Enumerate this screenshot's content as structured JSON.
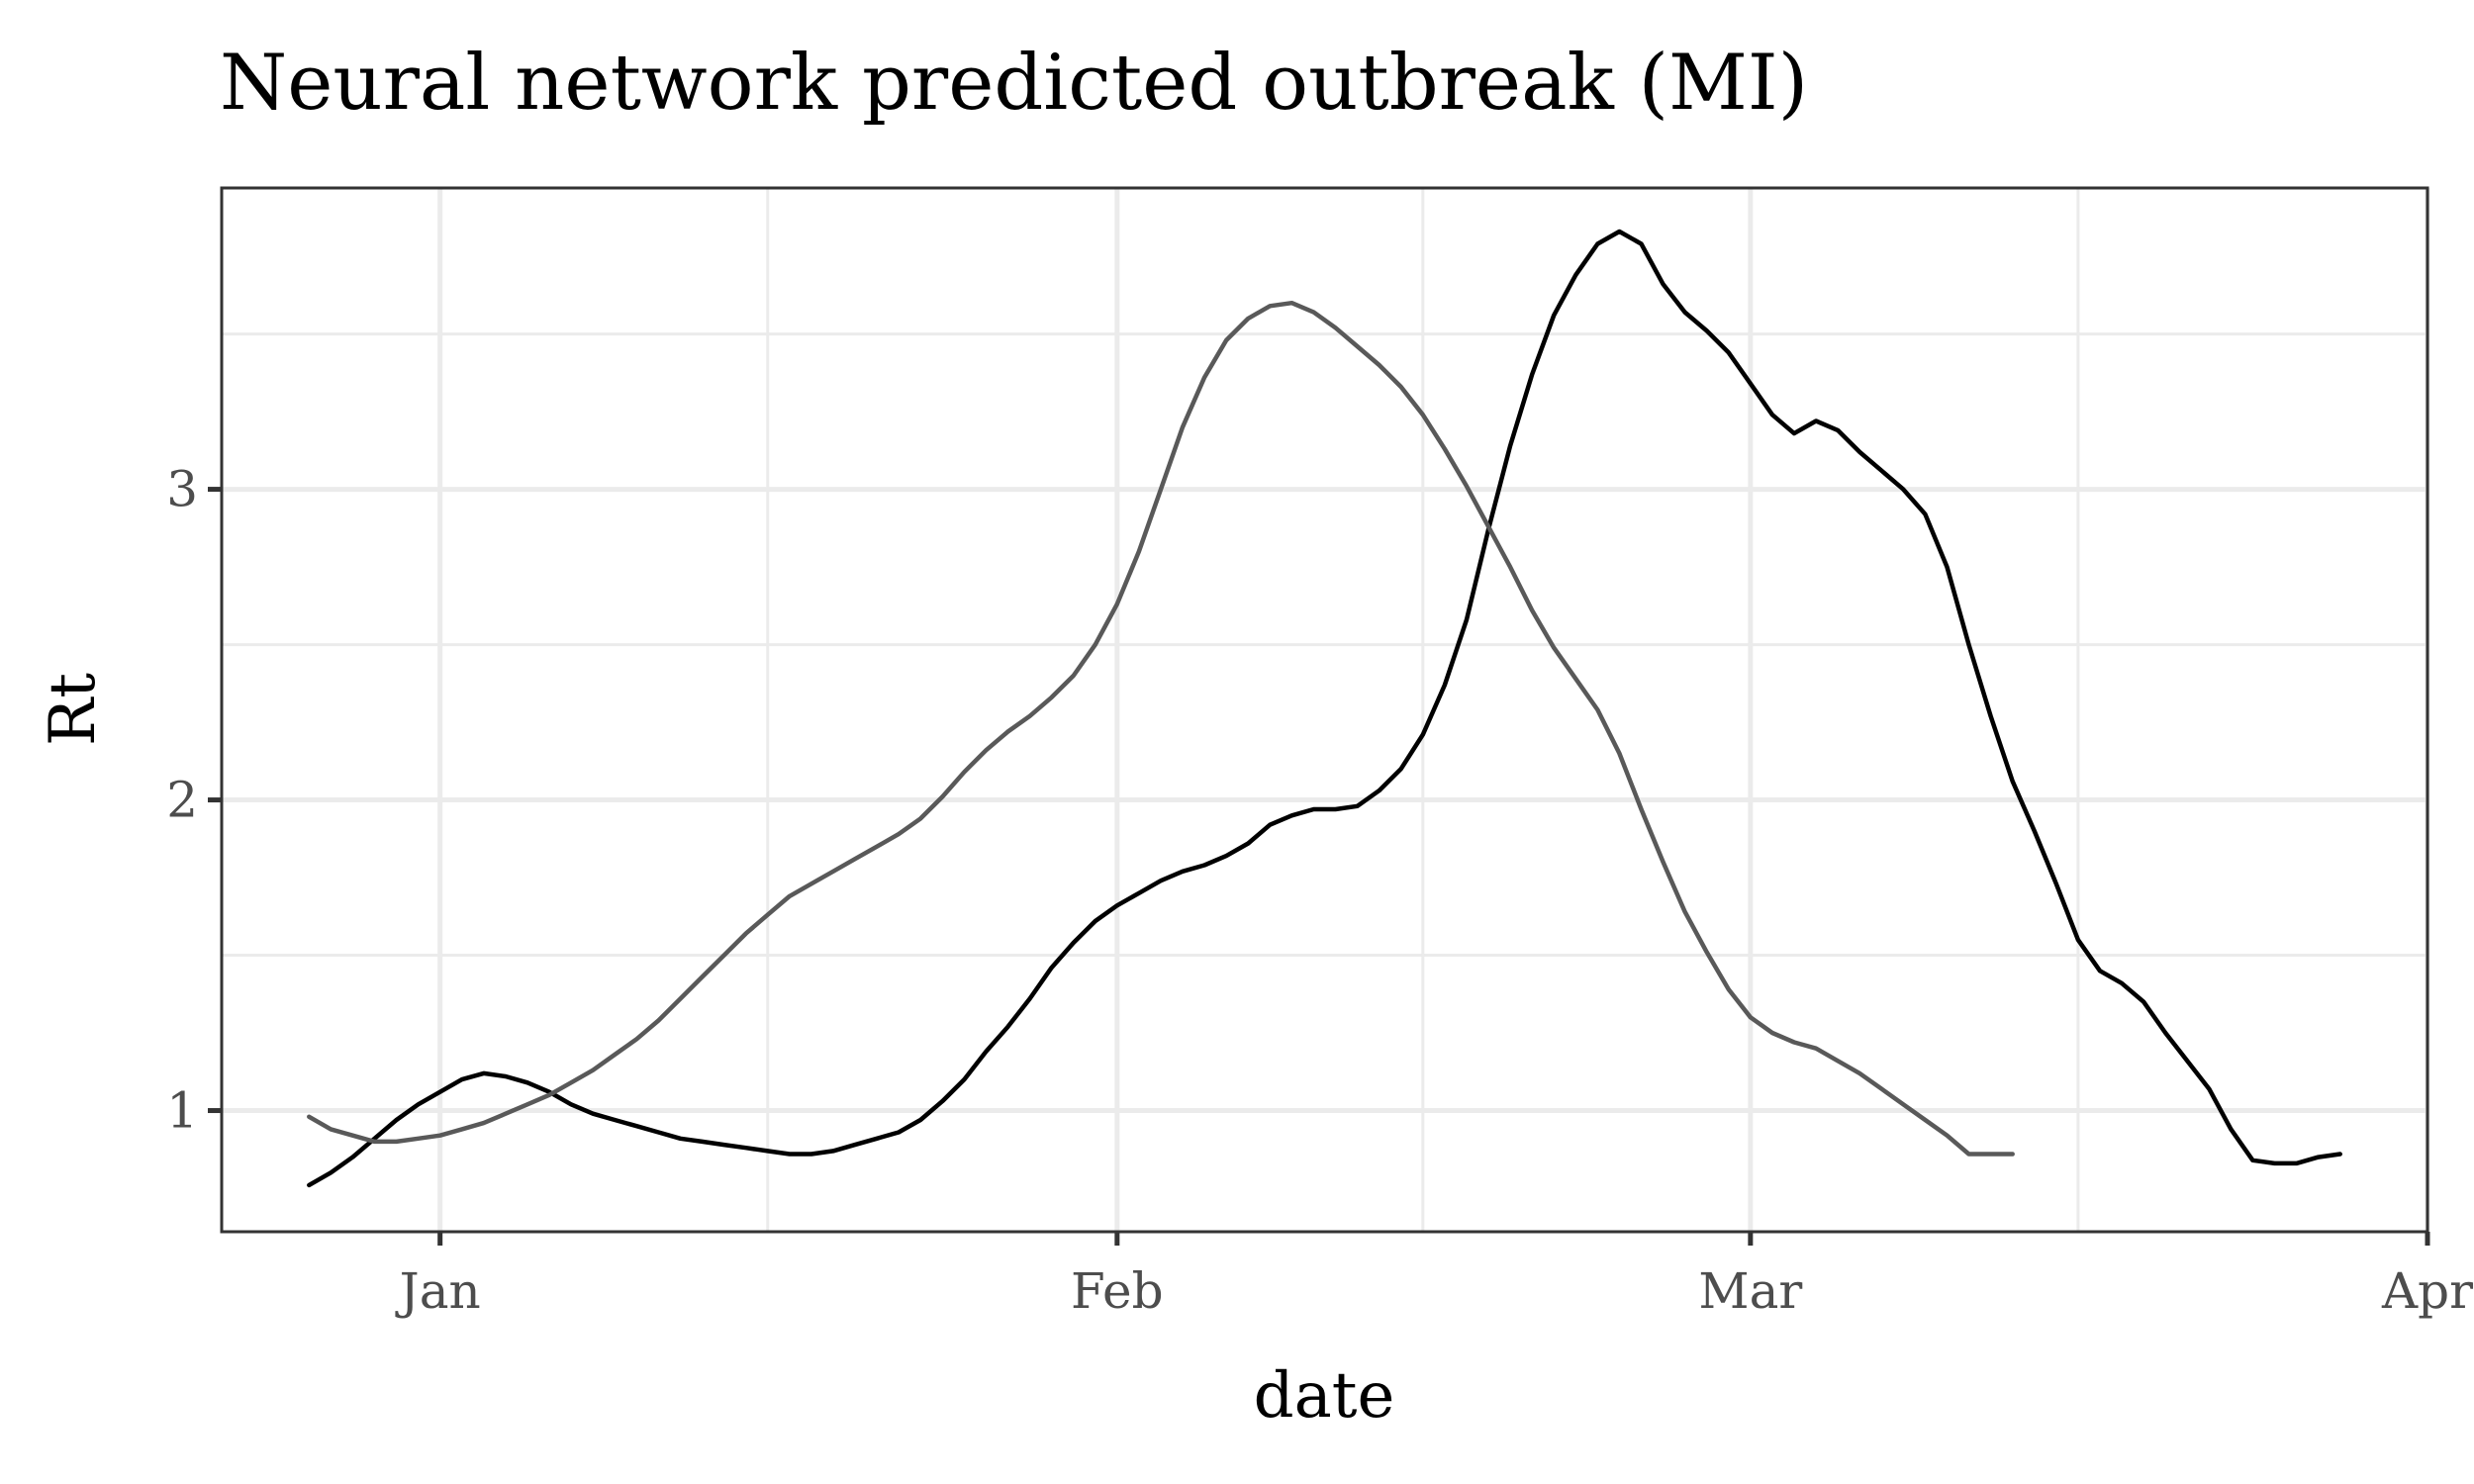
{
  "chart_data": {
    "type": "line",
    "title": "Neural network predicted outbreak (MI)",
    "xlabel": "date",
    "ylabel": "Rt",
    "x_range": [
      "2019-12-22",
      "2020-04-01"
    ],
    "ylim": [
      0.61,
      3.97
    ],
    "x_ticks": [
      {
        "date": "2020-01-01",
        "label": "Jan"
      },
      {
        "date": "2020-02-01",
        "label": "Feb"
      },
      {
        "date": "2020-03-01",
        "label": "Mar"
      },
      {
        "date": "2020-04-01",
        "label": "Apr"
      }
    ],
    "x_minor_ticks": [
      "2020-01-16",
      "2020-02-15",
      "2020-03-16"
    ],
    "y_ticks": [
      1,
      2,
      3
    ],
    "y_minor_ticks": [
      1.5,
      2.5,
      3.5
    ],
    "grid": true,
    "legend": "none",
    "series": [
      {
        "color": "#000000",
        "points": [
          [
            "2019-12-26",
            0.76
          ],
          [
            "2019-12-27",
            0.8
          ],
          [
            "2019-12-28",
            0.85
          ],
          [
            "2019-12-29",
            0.91
          ],
          [
            "2019-12-30",
            0.97
          ],
          [
            "2019-12-31",
            1.02
          ],
          [
            "2020-01-01",
            1.06
          ],
          [
            "2020-01-02",
            1.1
          ],
          [
            "2020-01-03",
            1.12
          ],
          [
            "2020-01-04",
            1.11
          ],
          [
            "2020-01-05",
            1.09
          ],
          [
            "2020-01-06",
            1.06
          ],
          [
            "2020-01-07",
            1.02
          ],
          [
            "2020-01-08",
            0.99
          ],
          [
            "2020-01-09",
            0.97
          ],
          [
            "2020-01-10",
            0.95
          ],
          [
            "2020-01-11",
            0.93
          ],
          [
            "2020-01-12",
            0.91
          ],
          [
            "2020-01-13",
            0.9
          ],
          [
            "2020-01-14",
            0.89
          ],
          [
            "2020-01-15",
            0.88
          ],
          [
            "2020-01-16",
            0.87
          ],
          [
            "2020-01-17",
            0.86
          ],
          [
            "2020-01-18",
            0.86
          ],
          [
            "2020-01-19",
            0.87
          ],
          [
            "2020-01-20",
            0.89
          ],
          [
            "2020-01-21",
            0.91
          ],
          [
            "2020-01-22",
            0.93
          ],
          [
            "2020-01-23",
            0.97
          ],
          [
            "2020-01-24",
            1.03
          ],
          [
            "2020-01-25",
            1.1
          ],
          [
            "2020-01-26",
            1.19
          ],
          [
            "2020-01-27",
            1.27
          ],
          [
            "2020-01-28",
            1.36
          ],
          [
            "2020-01-29",
            1.46
          ],
          [
            "2020-01-30",
            1.54
          ],
          [
            "2020-01-31",
            1.61
          ],
          [
            "2020-02-01",
            1.66
          ],
          [
            "2020-02-02",
            1.7
          ],
          [
            "2020-02-03",
            1.74
          ],
          [
            "2020-02-04",
            1.77
          ],
          [
            "2020-02-05",
            1.79
          ],
          [
            "2020-02-06",
            1.82
          ],
          [
            "2020-02-07",
            1.86
          ],
          [
            "2020-02-08",
            1.92
          ],
          [
            "2020-02-09",
            1.95
          ],
          [
            "2020-02-10",
            1.97
          ],
          [
            "2020-02-11",
            1.97
          ],
          [
            "2020-02-12",
            1.98
          ],
          [
            "2020-02-13",
            2.03
          ],
          [
            "2020-02-14",
            2.1
          ],
          [
            "2020-02-15",
            2.21
          ],
          [
            "2020-02-16",
            2.37
          ],
          [
            "2020-02-17",
            2.58
          ],
          [
            "2020-02-18",
            2.87
          ],
          [
            "2020-02-19",
            3.14
          ],
          [
            "2020-02-20",
            3.37
          ],
          [
            "2020-02-21",
            3.56
          ],
          [
            "2020-02-22",
            3.69
          ],
          [
            "2020-02-23",
            3.79
          ],
          [
            "2020-02-24",
            3.83
          ],
          [
            "2020-02-25",
            3.79
          ],
          [
            "2020-02-26",
            3.66
          ],
          [
            "2020-02-27",
            3.57
          ],
          [
            "2020-02-28",
            3.51
          ],
          [
            "2020-02-29",
            3.44
          ],
          [
            "2020-03-01",
            3.34
          ],
          [
            "2020-03-02",
            3.24
          ],
          [
            "2020-03-03",
            3.18
          ],
          [
            "2020-03-04",
            3.22
          ],
          [
            "2020-03-05",
            3.19
          ],
          [
            "2020-03-06",
            3.12
          ],
          [
            "2020-03-07",
            3.06
          ],
          [
            "2020-03-08",
            3.0
          ],
          [
            "2020-03-09",
            2.92
          ],
          [
            "2020-03-10",
            2.75
          ],
          [
            "2020-03-11",
            2.5
          ],
          [
            "2020-03-12",
            2.27
          ],
          [
            "2020-03-13",
            2.06
          ],
          [
            "2020-03-14",
            1.9
          ],
          [
            "2020-03-15",
            1.73
          ],
          [
            "2020-03-16",
            1.55
          ],
          [
            "2020-03-17",
            1.45
          ],
          [
            "2020-03-18",
            1.41
          ],
          [
            "2020-03-19",
            1.35
          ],
          [
            "2020-03-20",
            1.25
          ],
          [
            "2020-03-21",
            1.16
          ],
          [
            "2020-03-22",
            1.07
          ],
          [
            "2020-03-23",
            0.94
          ],
          [
            "2020-03-24",
            0.84
          ],
          [
            "2020-03-25",
            0.83
          ],
          [
            "2020-03-26",
            0.83
          ],
          [
            "2020-03-27",
            0.85
          ],
          [
            "2020-03-28",
            0.86
          ]
        ]
      },
      {
        "color": "#595959",
        "points": [
          [
            "2019-12-26",
            0.98
          ],
          [
            "2019-12-27",
            0.94
          ],
          [
            "2019-12-28",
            0.92
          ],
          [
            "2019-12-29",
            0.9
          ],
          [
            "2019-12-30",
            0.9
          ],
          [
            "2019-12-31",
            0.91
          ],
          [
            "2020-01-01",
            0.92
          ],
          [
            "2020-01-02",
            0.94
          ],
          [
            "2020-01-03",
            0.96
          ],
          [
            "2020-01-04",
            0.99
          ],
          [
            "2020-01-05",
            1.02
          ],
          [
            "2020-01-06",
            1.05
          ],
          [
            "2020-01-07",
            1.09
          ],
          [
            "2020-01-08",
            1.13
          ],
          [
            "2020-01-09",
            1.18
          ],
          [
            "2020-01-10",
            1.23
          ],
          [
            "2020-01-11",
            1.29
          ],
          [
            "2020-01-12",
            1.36
          ],
          [
            "2020-01-13",
            1.43
          ],
          [
            "2020-01-14",
            1.5
          ],
          [
            "2020-01-15",
            1.57
          ],
          [
            "2020-01-16",
            1.63
          ],
          [
            "2020-01-17",
            1.69
          ],
          [
            "2020-01-18",
            1.73
          ],
          [
            "2020-01-19",
            1.77
          ],
          [
            "2020-01-20",
            1.81
          ],
          [
            "2020-01-21",
            1.85
          ],
          [
            "2020-01-22",
            1.89
          ],
          [
            "2020-01-23",
            1.94
          ],
          [
            "2020-01-24",
            2.01
          ],
          [
            "2020-01-25",
            2.09
          ],
          [
            "2020-01-26",
            2.16
          ],
          [
            "2020-01-27",
            2.22
          ],
          [
            "2020-01-28",
            2.27
          ],
          [
            "2020-01-29",
            2.33
          ],
          [
            "2020-01-30",
            2.4
          ],
          [
            "2020-01-31",
            2.5
          ],
          [
            "2020-02-01",
            2.63
          ],
          [
            "2020-02-02",
            2.8
          ],
          [
            "2020-02-03",
            3.0
          ],
          [
            "2020-02-04",
            3.2
          ],
          [
            "2020-02-05",
            3.36
          ],
          [
            "2020-02-06",
            3.48
          ],
          [
            "2020-02-07",
            3.55
          ],
          [
            "2020-02-08",
            3.59
          ],
          [
            "2020-02-09",
            3.6
          ],
          [
            "2020-02-10",
            3.57
          ],
          [
            "2020-02-11",
            3.52
          ],
          [
            "2020-02-12",
            3.46
          ],
          [
            "2020-02-13",
            3.4
          ],
          [
            "2020-02-14",
            3.33
          ],
          [
            "2020-02-15",
            3.24
          ],
          [
            "2020-02-16",
            3.13
          ],
          [
            "2020-02-17",
            3.01
          ],
          [
            "2020-02-18",
            2.88
          ],
          [
            "2020-02-19",
            2.75
          ],
          [
            "2020-02-20",
            2.61
          ],
          [
            "2020-02-21",
            2.49
          ],
          [
            "2020-02-22",
            2.39
          ],
          [
            "2020-02-23",
            2.29
          ],
          [
            "2020-02-24",
            2.15
          ],
          [
            "2020-02-25",
            1.97
          ],
          [
            "2020-02-26",
            1.8
          ],
          [
            "2020-02-27",
            1.64
          ],
          [
            "2020-02-28",
            1.51
          ],
          [
            "2020-02-29",
            1.39
          ],
          [
            "2020-03-01",
            1.3
          ],
          [
            "2020-03-02",
            1.25
          ],
          [
            "2020-03-03",
            1.22
          ],
          [
            "2020-03-04",
            1.2
          ],
          [
            "2020-03-05",
            1.16
          ],
          [
            "2020-03-06",
            1.12
          ],
          [
            "2020-03-07",
            1.07
          ],
          [
            "2020-03-08",
            1.02
          ],
          [
            "2020-03-09",
            0.97
          ],
          [
            "2020-03-10",
            0.92
          ],
          [
            "2020-03-11",
            0.86
          ],
          [
            "2020-03-12",
            0.86
          ],
          [
            "2020-03-13",
            0.86
          ]
        ]
      }
    ]
  }
}
